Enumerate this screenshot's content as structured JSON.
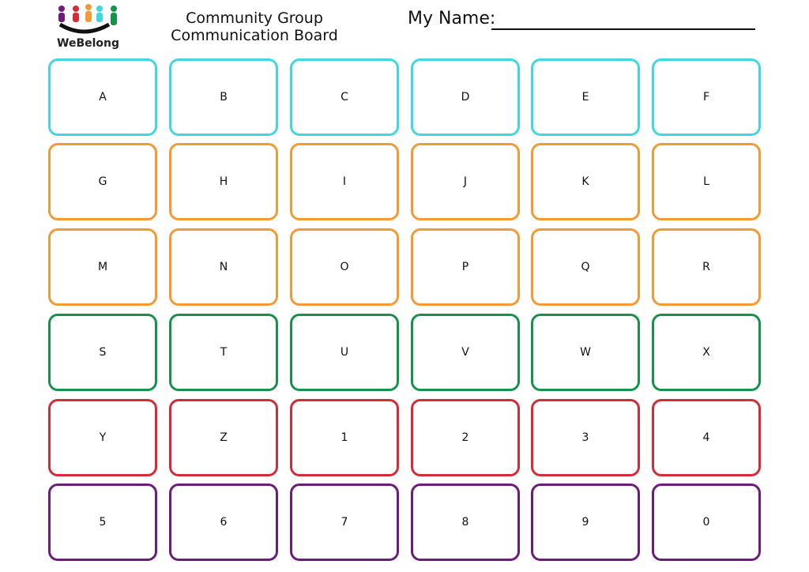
{
  "header": {
    "title": "Community Group Communication Board",
    "name_label": "My Name:",
    "logo_text": "WeBelong"
  },
  "board": {
    "rows": [
      {
        "color": "#3fd8e2",
        "cells": [
          "A",
          "B",
          "C",
          "D",
          "E",
          "F"
        ]
      },
      {
        "color": "#f39a35",
        "cells": [
          "G",
          "H",
          "I",
          "J",
          "K",
          "L"
        ]
      },
      {
        "color": "#f39a35",
        "cells": [
          "M",
          "N",
          "O",
          "P",
          "Q",
          "R"
        ]
      },
      {
        "color": "#16924a",
        "cells": [
          "S",
          "T",
          "U",
          "V",
          "W",
          "X"
        ]
      },
      {
        "color": "#d42b38",
        "cells": [
          "Y",
          "Z",
          "1",
          "2",
          "3",
          "4"
        ]
      },
      {
        "color": "#6e1c7c",
        "cells": [
          "5",
          "6",
          "7",
          "8",
          "9",
          "0"
        ]
      }
    ]
  }
}
